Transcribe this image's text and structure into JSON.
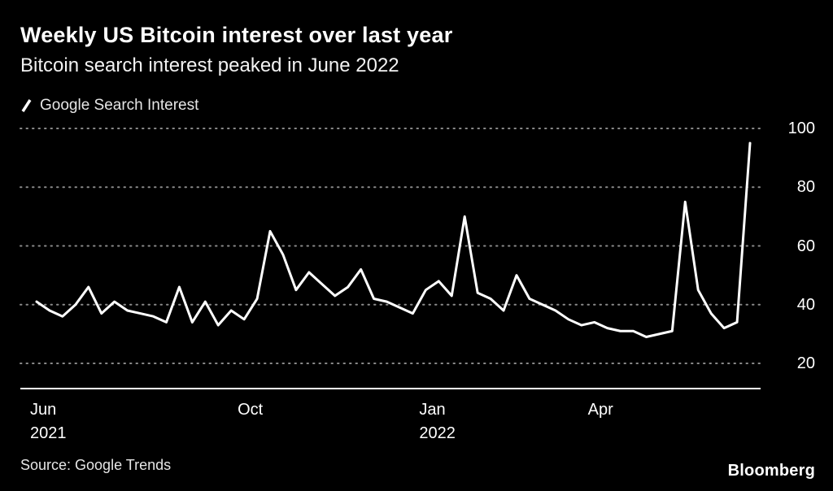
{
  "header": {
    "title": "Weekly US Bitcoin interest over last year",
    "subtitle": "Bitcoin search interest peaked in June 2022"
  },
  "legend": {
    "series_label": "Google Search Interest",
    "marker": "diagonal-slash"
  },
  "footer": {
    "source": "Source: Google Trends",
    "brand": "Bloomberg"
  },
  "colors": {
    "background": "#000000",
    "line": "#ffffff",
    "grid": "#8a8a8a",
    "axis": "#ffffff",
    "text": "#ffffff"
  },
  "chart_data": {
    "type": "line",
    "title": "Weekly US Bitcoin interest over last year",
    "subtitle": "Bitcoin search interest peaked in June 2022",
    "frequency": "weekly",
    "x_range": "Jun 2021 - Jun 2022",
    "series": [
      {
        "name": "Google Search Interest",
        "values": [
          41,
          38,
          36,
          40,
          46,
          37,
          41,
          38,
          37,
          36,
          34,
          46,
          34,
          41,
          33,
          38,
          35,
          42,
          65,
          57,
          45,
          51,
          47,
          43,
          46,
          52,
          42,
          41,
          39,
          37,
          45,
          48,
          43,
          70,
          44,
          42,
          38,
          50,
          42,
          40,
          38,
          35,
          33,
          34,
          32,
          31,
          31,
          29,
          30,
          31,
          75,
          45,
          37,
          32,
          34,
          95
        ]
      }
    ],
    "x_ticks": [
      {
        "label": "Jun",
        "sublabel": "2021",
        "index": 0
      },
      {
        "label": "Oct",
        "sublabel": "",
        "index": 16
      },
      {
        "label": "Jan",
        "sublabel": "2022",
        "index": 30
      },
      {
        "label": "Apr",
        "sublabel": "",
        "index": 43
      }
    ],
    "y_ticks": [
      100,
      80,
      60,
      40,
      20
    ],
    "ylim": [
      20,
      100
    ],
    "grid": "dotted-horizontal",
    "legend_position": "top-left",
    "source": "Google Trends"
  }
}
